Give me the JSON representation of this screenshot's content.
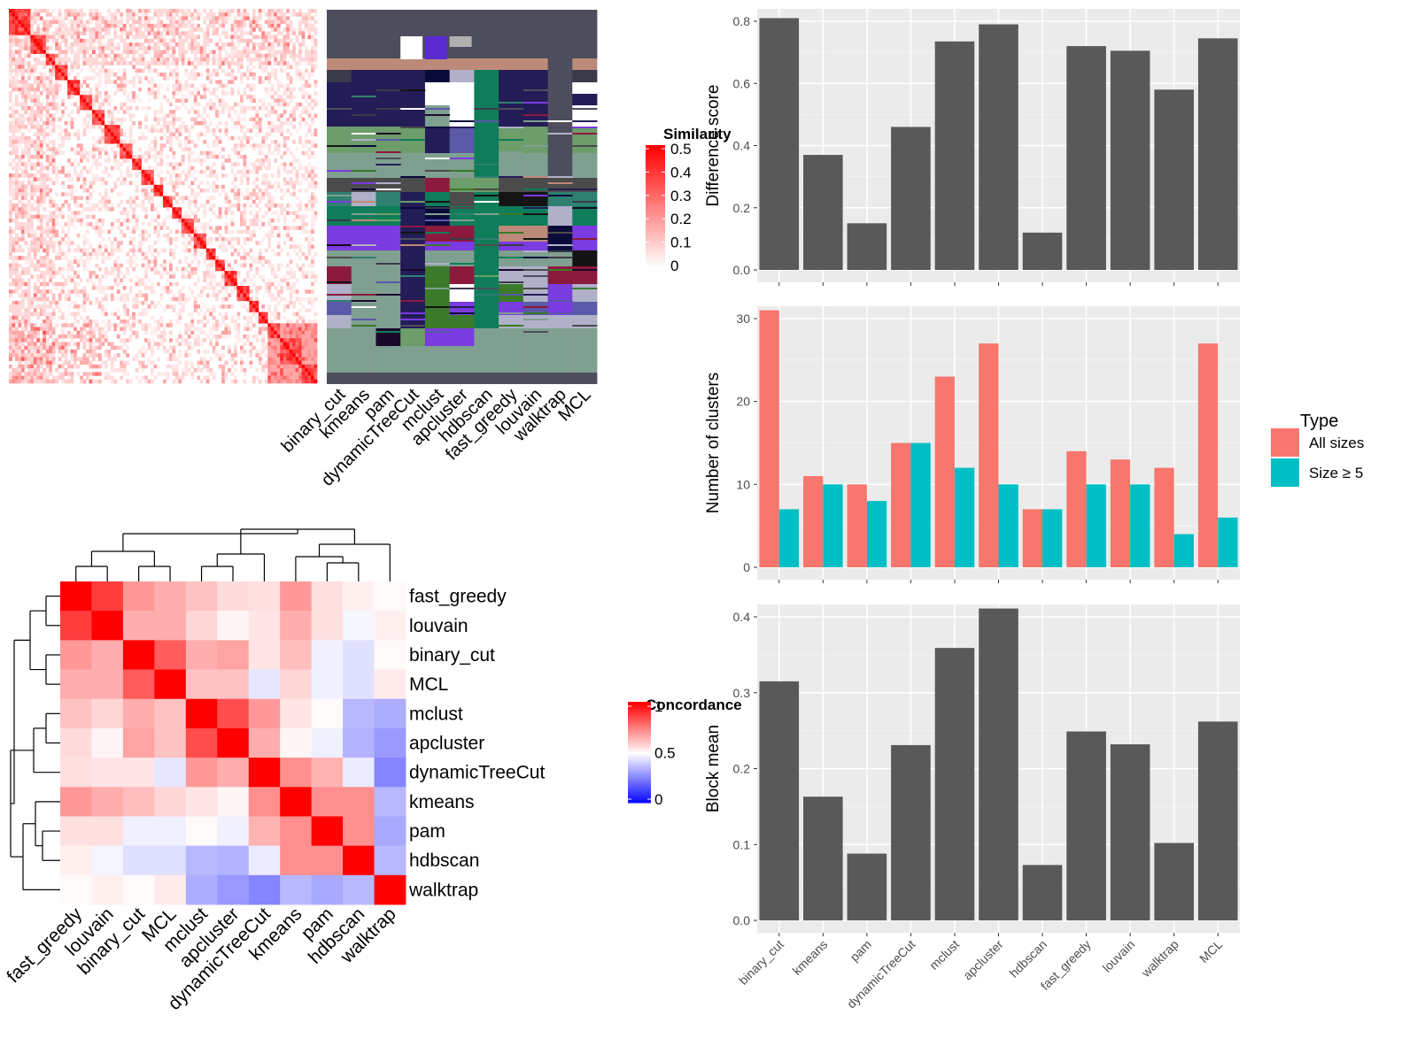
{
  "colors": {
    "panel_bg": "#ebebeb",
    "bar_fill": "#595959",
    "all_sizes": "#f8766d",
    "size_ge5": "#00bfc4",
    "heat_high": "#ff0000",
    "heat_mid": "#ffffff",
    "heat_low": "#0000ff"
  },
  "similarity_heatmap": {
    "legend_title": "Similarity",
    "legend_ticks": [
      "0.5",
      "0.4",
      "0.3",
      "0.2",
      "0.1",
      "0"
    ],
    "columns": [
      "binary_cut",
      "kmeans",
      "pam",
      "dynamicTreeCut",
      "mclust",
      "apcluster",
      "hdbscan",
      "fast_greedy",
      "louvain",
      "walktrap",
      "MCL"
    ]
  },
  "concordance_heatmap": {
    "legend_title": "Concordance",
    "legend_ticks": [
      "1",
      "0.5",
      "0"
    ],
    "methods": [
      "fast_greedy",
      "louvain",
      "binary_cut",
      "MCL",
      "mclust",
      "apcluster",
      "dynamicTreeCut",
      "kmeans",
      "pam",
      "hdbscan",
      "walktrap"
    ],
    "matrix": [
      [
        1.0,
        0.88,
        0.7,
        0.66,
        0.62,
        0.57,
        0.56,
        0.7,
        0.56,
        0.53,
        0.51
      ],
      [
        0.88,
        1.0,
        0.66,
        0.66,
        0.58,
        0.52,
        0.55,
        0.66,
        0.56,
        0.48,
        0.53
      ],
      [
        0.7,
        0.66,
        1.0,
        0.82,
        0.66,
        0.68,
        0.55,
        0.63,
        0.47,
        0.44,
        0.51
      ],
      [
        0.66,
        0.66,
        0.82,
        1.0,
        0.62,
        0.62,
        0.45,
        0.58,
        0.47,
        0.44,
        0.54
      ],
      [
        0.62,
        0.58,
        0.66,
        0.62,
        1.0,
        0.85,
        0.7,
        0.55,
        0.51,
        0.36,
        0.34
      ],
      [
        0.57,
        0.52,
        0.68,
        0.62,
        0.85,
        1.0,
        0.66,
        0.52,
        0.47,
        0.35,
        0.3
      ],
      [
        0.56,
        0.55,
        0.55,
        0.45,
        0.7,
        0.66,
        1.0,
        0.72,
        0.65,
        0.46,
        0.26
      ],
      [
        0.7,
        0.66,
        0.63,
        0.58,
        0.55,
        0.52,
        0.72,
        1.0,
        0.72,
        0.72,
        0.36
      ],
      [
        0.56,
        0.56,
        0.47,
        0.47,
        0.51,
        0.47,
        0.65,
        0.72,
        1.0,
        0.72,
        0.33
      ],
      [
        0.53,
        0.48,
        0.44,
        0.44,
        0.36,
        0.35,
        0.46,
        0.72,
        0.72,
        1.0,
        0.36
      ],
      [
        0.51,
        0.53,
        0.51,
        0.54,
        0.34,
        0.3,
        0.26,
        0.36,
        0.33,
        0.36,
        1.0
      ]
    ]
  },
  "chart_data": [
    {
      "type": "bar",
      "title": "",
      "xlabel": "",
      "ylabel": "Difference score",
      "categories": [
        "binary_cut",
        "kmeans",
        "pam",
        "dynamicTreeCut",
        "mclust",
        "apcluster",
        "hdbscan",
        "fast_greedy",
        "louvain",
        "walktrap",
        "MCL"
      ],
      "values": [
        0.81,
        0.37,
        0.15,
        0.46,
        0.735,
        0.79,
        0.12,
        0.72,
        0.705,
        0.58,
        0.745
      ],
      "ylim": [
        0,
        0.8
      ],
      "yticks": [
        "0.0",
        "0.2",
        "0.4",
        "0.6",
        "0.8"
      ],
      "grid": true
    },
    {
      "type": "bar",
      "title": "",
      "xlabel": "",
      "ylabel": "Number of clusters",
      "legend_title": "Type",
      "legend_position": "right",
      "categories": [
        "binary_cut",
        "kmeans",
        "pam",
        "dynamicTreeCut",
        "mclust",
        "apcluster",
        "hdbscan",
        "fast_greedy",
        "louvain",
        "walktrap",
        "MCL"
      ],
      "series": [
        {
          "name": "All sizes",
          "values": [
            31,
            11,
            10,
            15,
            23,
            27,
            7,
            14,
            13,
            12,
            27
          ]
        },
        {
          "name": "Size ≥ 5",
          "values": [
            7,
            10,
            8,
            15,
            12,
            10,
            7,
            10,
            10,
            4,
            6
          ]
        }
      ],
      "ylim": [
        0,
        30
      ],
      "yticks": [
        "0",
        "10",
        "20",
        "30"
      ],
      "grid": true
    },
    {
      "type": "bar",
      "title": "",
      "xlabel": "",
      "ylabel": "Block mean",
      "categories": [
        "binary_cut",
        "kmeans",
        "pam",
        "dynamicTreeCut",
        "mclust",
        "apcluster",
        "hdbscan",
        "fast_greedy",
        "louvain",
        "walktrap",
        "MCL"
      ],
      "values": [
        0.315,
        0.163,
        0.088,
        0.231,
        0.359,
        0.411,
        0.073,
        0.249,
        0.232,
        0.102,
        0.262
      ],
      "ylim": [
        0,
        0.4
      ],
      "yticks": [
        "0.0",
        "0.1",
        "0.2",
        "0.3",
        "0.4"
      ],
      "grid": true
    }
  ]
}
